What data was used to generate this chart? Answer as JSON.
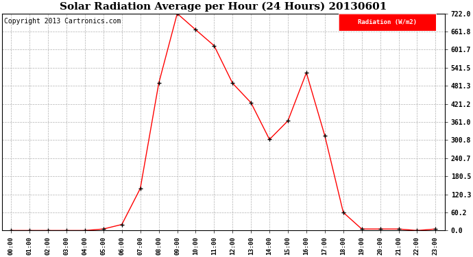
{
  "title": "Solar Radiation Average per Hour (24 Hours) 20130601",
  "copyright": "Copyright 2013 Cartronics.com",
  "legend_label": "Radiation (W/m2)",
  "hours": [
    0,
    1,
    2,
    3,
    4,
    5,
    6,
    7,
    8,
    9,
    10,
    11,
    12,
    13,
    14,
    15,
    16,
    17,
    18,
    19,
    20,
    21,
    22,
    23
  ],
  "values": [
    0.0,
    0.0,
    0.0,
    0.0,
    0.0,
    5.0,
    20.0,
    140.0,
    490.0,
    722.0,
    668.0,
    615.0,
    490.0,
    425.0,
    303.0,
    365.0,
    525.0,
    315.0,
    60.0,
    5.0,
    5.0,
    5.0,
    0.0,
    5.0
  ],
  "x_labels": [
    "00:00",
    "01:00",
    "02:00",
    "03:00",
    "04:00",
    "05:00",
    "06:00",
    "07:00",
    "08:00",
    "09:00",
    "10:00",
    "11:00",
    "12:00",
    "13:00",
    "14:00",
    "15:00",
    "16:00",
    "17:00",
    "18:00",
    "19:00",
    "20:00",
    "21:00",
    "22:00",
    "23:00"
  ],
  "yticks": [
    0.0,
    60.2,
    120.3,
    180.5,
    240.7,
    300.8,
    361.0,
    421.2,
    481.3,
    541.5,
    601.7,
    661.8,
    722.0
  ],
  "line_color": "red",
  "marker_color": "black",
  "bg_color": "#ffffff",
  "grid_color": "#b0b0b0",
  "title_fontsize": 11,
  "copyright_fontsize": 7,
  "legend_bg": "red",
  "legend_text_color": "white",
  "ylim": [
    0.0,
    722.0
  ],
  "xlim": [
    -0.5,
    23.5
  ]
}
